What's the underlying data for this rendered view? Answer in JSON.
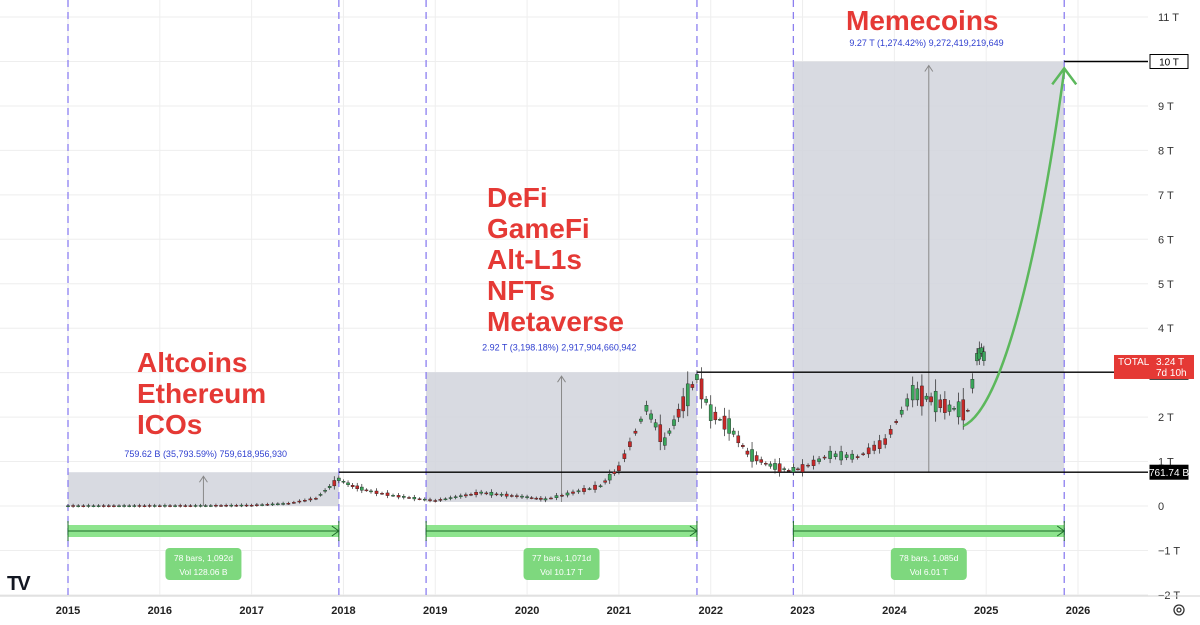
{
  "chart_data": {
    "type": "candlestick",
    "symbol": "TOTAL",
    "x_axis_labels": [
      "2015",
      "2016",
      "2017",
      "2018",
      "2019",
      "2020",
      "2021",
      "2022",
      "2023",
      "2024",
      "2025",
      "2026"
    ],
    "y_axis_labels": [
      "11 T",
      "10 T",
      "9 T",
      "8 T",
      "7 T",
      "6 T",
      "5 T",
      "4 T",
      "3 T",
      "2 T",
      "1 T",
      "0",
      "−1 T",
      "−2 T"
    ],
    "ylim": [
      -2,
      11
    ],
    "y_unit": "T",
    "grid": true,
    "cycle_boundaries": [
      "2015.0",
      "2017.95",
      "2018.9",
      "2021.85",
      "2022.9",
      "2025.85"
    ],
    "price_series": [
      {
        "x": 2015.0,
        "y": 0.005
      },
      {
        "x": 2016.0,
        "y": 0.007
      },
      {
        "x": 2016.5,
        "y": 0.009
      },
      {
        "x": 2017.0,
        "y": 0.018
      },
      {
        "x": 2017.4,
        "y": 0.06
      },
      {
        "x": 2017.7,
        "y": 0.17
      },
      {
        "x": 2017.95,
        "y": 0.6
      },
      {
        "x": 2018.1,
        "y": 0.45
      },
      {
        "x": 2018.3,
        "y": 0.33
      },
      {
        "x": 2018.6,
        "y": 0.22
      },
      {
        "x": 2019.0,
        "y": 0.12
      },
      {
        "x": 2019.5,
        "y": 0.3
      },
      {
        "x": 2020.0,
        "y": 0.2
      },
      {
        "x": 2020.2,
        "y": 0.15
      },
      {
        "x": 2020.5,
        "y": 0.3
      },
      {
        "x": 2020.8,
        "y": 0.45
      },
      {
        "x": 2021.0,
        "y": 0.85
      },
      {
        "x": 2021.3,
        "y": 2.2
      },
      {
        "x": 2021.5,
        "y": 1.45
      },
      {
        "x": 2021.7,
        "y": 2.3
      },
      {
        "x": 2021.85,
        "y": 2.9
      },
      {
        "x": 2022.0,
        "y": 2.1
      },
      {
        "x": 2022.2,
        "y": 1.8
      },
      {
        "x": 2022.4,
        "y": 1.2
      },
      {
        "x": 2022.6,
        "y": 0.95
      },
      {
        "x": 2022.85,
        "y": 0.8
      },
      {
        "x": 2023.0,
        "y": 0.85
      },
      {
        "x": 2023.3,
        "y": 1.15
      },
      {
        "x": 2023.6,
        "y": 1.1
      },
      {
        "x": 2023.9,
        "y": 1.45
      },
      {
        "x": 2024.2,
        "y": 2.55
      },
      {
        "x": 2024.4,
        "y": 2.4
      },
      {
        "x": 2024.6,
        "y": 2.2
      },
      {
        "x": 2024.8,
        "y": 2.15
      },
      {
        "x": 2024.9,
        "y": 3.35
      },
      {
        "x": 2024.95,
        "y": 3.5
      },
      {
        "x": 2025.0,
        "y": 3.24
      }
    ],
    "horizontal_levels": [
      {
        "label": "10 T",
        "value": 10.0
      },
      {
        "label": "3.01 T",
        "value": 3.01
      },
      {
        "label": "761.74 B",
        "value": 0.76
      }
    ],
    "current_price": {
      "symbol": "TOTAL",
      "value_label": "3.24 T",
      "countdown": "7d 10h",
      "value": 3.24
    },
    "eras": [
      {
        "lines": [
          "Altcoins",
          "Ethereum",
          "ICOs"
        ],
        "range_text": "759.62 B (35,793.59%) 759,618,956,930",
        "box_x": [
          2015.0,
          2017.95
        ],
        "box_y": [
          0.0,
          0.76
        ],
        "date_range_x": [
          2015.0,
          2017.95
        ],
        "bars_text": "78 bars, 1,092d",
        "vol_text": "Vol 128.06 B"
      },
      {
        "lines": [
          "DeFi",
          "GameFi",
          "Alt-L1s",
          "NFTs",
          "Metaverse"
        ],
        "range_text": "2.92 T (3,198.18%) 2,917,904,660,942",
        "box_x": [
          2018.9,
          2021.85
        ],
        "box_y": [
          0.09,
          3.01
        ],
        "date_range_x": [
          2018.9,
          2021.85
        ],
        "bars_text": "77 bars, 1,071d",
        "vol_text": "Vol 10.17 T"
      },
      {
        "lines": [
          "Memecoins"
        ],
        "range_text": "9.27 T (1,274.42%) 9,272,419,219,649",
        "box_x": [
          2022.9,
          2025.85
        ],
        "box_y": [
          0.76,
          10.0
        ],
        "date_range_x": [
          2022.9,
          2025.85
        ],
        "bars_text": "78 bars, 1,085d",
        "vol_text": "Vol 6.01 T"
      }
    ],
    "projection": {
      "color": "#5cb85c",
      "points": [
        {
          "x": 2024.75,
          "y": 1.8
        },
        {
          "x": 2025.2,
          "y": 2.2
        },
        {
          "x": 2025.6,
          "y": 6.0
        },
        {
          "x": 2025.85,
          "y": 9.8
        }
      ]
    }
  },
  "colors": {
    "up": "#26a69a",
    "down": "#ef5350",
    "box_fill": "#d1d4dc",
    "range_green": "#8ee48e",
    "era_text": "#e53935",
    "cycle_line": "#8c7ff0",
    "grid": "#eeeeee"
  },
  "branding": {
    "logo_text": "TV"
  }
}
